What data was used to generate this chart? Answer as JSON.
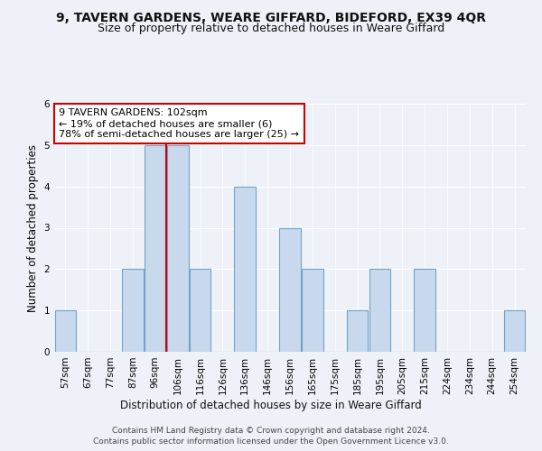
{
  "title1": "9, TAVERN GARDENS, WEARE GIFFARD, BIDEFORD, EX39 4QR",
  "title2": "Size of property relative to detached houses in Weare Giffard",
  "xlabel": "Distribution of detached houses by size in Weare Giffard",
  "ylabel": "Number of detached properties",
  "categories": [
    "57sqm",
    "67sqm",
    "77sqm",
    "87sqm",
    "96sqm",
    "106sqm",
    "116sqm",
    "126sqm",
    "136sqm",
    "146sqm",
    "156sqm",
    "165sqm",
    "175sqm",
    "185sqm",
    "195sqm",
    "205sqm",
    "215sqm",
    "224sqm",
    "234sqm",
    "244sqm",
    "254sqm"
  ],
  "values": [
    1,
    0,
    0,
    2,
    5,
    5,
    2,
    0,
    4,
    0,
    3,
    2,
    0,
    1,
    2,
    0,
    2,
    0,
    0,
    0,
    1
  ],
  "bar_color": "#c9d9ed",
  "bar_edge_color": "#6fa3c8",
  "red_line_index": 4,
  "ylim": [
    0,
    6
  ],
  "yticks": [
    0,
    1,
    2,
    3,
    4,
    5,
    6
  ],
  "annotation_text": "9 TAVERN GARDENS: 102sqm\n← 19% of detached houses are smaller (6)\n78% of semi-detached houses are larger (25) →",
  "annotation_box_color": "#ffffff",
  "annotation_box_edge": "#cc0000",
  "footer1": "Contains HM Land Registry data © Crown copyright and database right 2024.",
  "footer2": "Contains public sector information licensed under the Open Government Licence v3.0.",
  "title1_fontsize": 10,
  "title2_fontsize": 9,
  "xlabel_fontsize": 8.5,
  "ylabel_fontsize": 8.5,
  "tick_fontsize": 7.5,
  "annotation_fontsize": 8,
  "footer_fontsize": 6.5,
  "background_color": "#eef2f8",
  "plot_bg_color": "#eef2f8",
  "grid_color": "#ffffff",
  "red_line_color": "#cc0000"
}
